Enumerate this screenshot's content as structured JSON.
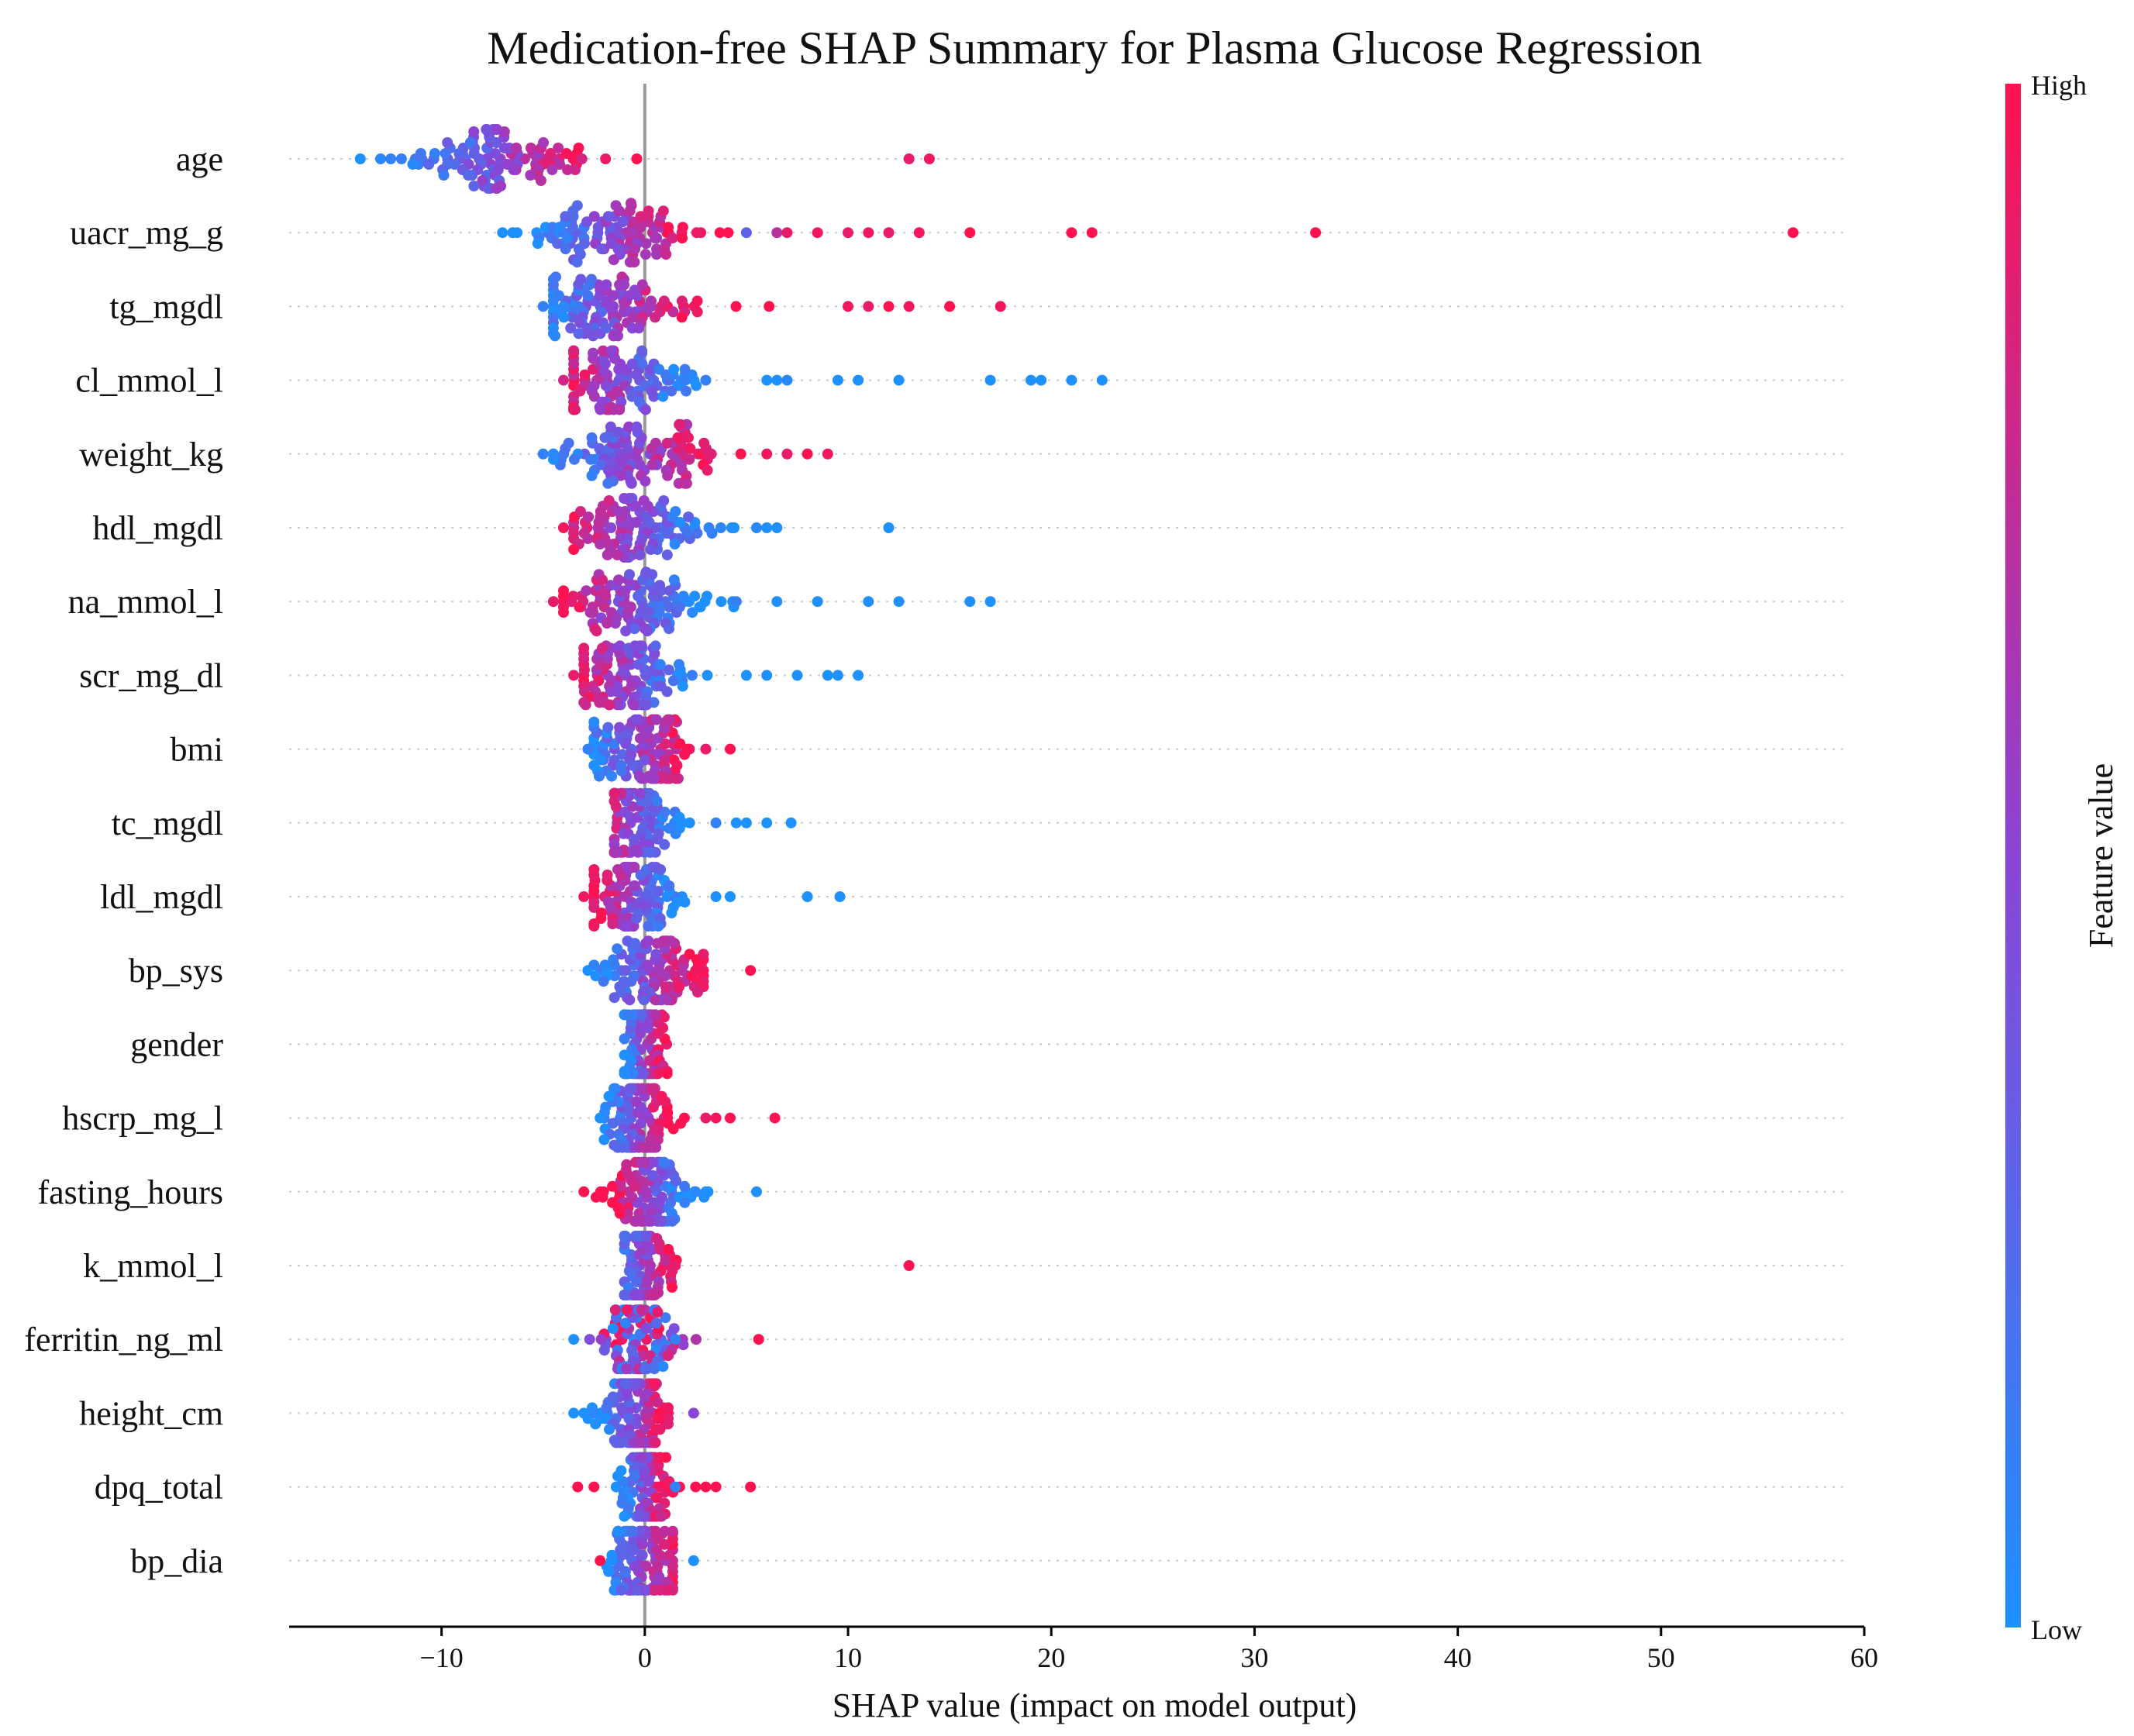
{
  "chart_data": {
    "type": "scatter",
    "subtype": "shap-beeswarm",
    "title": "Medication-free SHAP Summary for Plasma Glucose Regression",
    "xlabel": "SHAP value (impact on model output)",
    "xlim": [
      -17.5,
      60
    ],
    "xticks": [
      -10,
      0,
      10,
      20,
      30,
      40,
      50,
      60
    ],
    "xtick_labels": [
      "−10",
      "0",
      "10",
      "20",
      "30",
      "40",
      "50",
      "60"
    ],
    "zero_line": true,
    "grid": false,
    "colorbar": {
      "title": "Feature value",
      "high_label": "High",
      "low_label": "Low",
      "low_color": "#1e90ff",
      "mid_color": "#8b44d6",
      "high_color": "#ff1250"
    },
    "features": [
      {
        "name": "age",
        "x_range": [
          -14,
          14
        ],
        "center": -7,
        "spread": 2.5,
        "color_trend": 1,
        "outliers": [
          [
            -14,
            0
          ],
          [
            -13,
            0.05
          ],
          [
            -12.5,
            0.1
          ],
          [
            13,
            0.9
          ],
          [
            14,
            0.95
          ]
        ]
      },
      {
        "name": "uacr_mg_g",
        "x_range": [
          -7,
          57
        ],
        "center": -1.5,
        "spread": 2.2,
        "color_trend": 1,
        "outliers": [
          [
            -7,
            0
          ],
          [
            5,
            0.3
          ],
          [
            6.5,
            0.7
          ],
          [
            7,
            0.9
          ],
          [
            8.5,
            0.95
          ],
          [
            10,
            0.9
          ],
          [
            11,
            0.95
          ],
          [
            12,
            0.9
          ],
          [
            13.5,
            0.95
          ],
          [
            16,
            1
          ],
          [
            21,
            1
          ],
          [
            22,
            1
          ],
          [
            33,
            1
          ],
          [
            56.5,
            1
          ]
        ]
      },
      {
        "name": "tg_mgdl",
        "x_range": [
          -5,
          17.5
        ],
        "center": -1.5,
        "spread": 2.0,
        "color_trend": 1,
        "outliers": [
          [
            -5,
            0.1
          ],
          [
            -4,
            0.05
          ],
          [
            10,
            0.95
          ],
          [
            11,
            0.9
          ],
          [
            12,
            1
          ],
          [
            13,
            0.95
          ],
          [
            15,
            1
          ],
          [
            17.5,
            0.95
          ]
        ]
      },
      {
        "name": "cl_mmol_l",
        "x_range": [
          -4,
          22.5
        ],
        "center": -1.2,
        "spread": 1.8,
        "color_trend": -1,
        "outliers": [
          [
            -4,
            0.8
          ],
          [
            2,
            0.1
          ],
          [
            3,
            0.1
          ],
          [
            6,
            0
          ],
          [
            6.5,
            0
          ],
          [
            7,
            0.05
          ],
          [
            9.5,
            0
          ],
          [
            10.5,
            0
          ],
          [
            12.5,
            0
          ],
          [
            17,
            0
          ],
          [
            19,
            0
          ],
          [
            19.5,
            0
          ],
          [
            21,
            0
          ],
          [
            22.5,
            0
          ]
        ]
      },
      {
        "name": "weight_kg",
        "x_range": [
          -5,
          9
        ],
        "center": -0.5,
        "spread": 2.2,
        "color_trend": 1,
        "outliers": [
          [
            -5,
            0.1
          ],
          [
            -4.5,
            0.05
          ],
          [
            6,
            0.95
          ],
          [
            7,
            0.9
          ],
          [
            8,
            1
          ],
          [
            9,
            0.95
          ]
        ]
      },
      {
        "name": "hdl_mgdl",
        "x_range": [
          -4,
          12
        ],
        "center": -0.5,
        "spread": 2.0,
        "color_trend": -1,
        "outliers": [
          [
            -4,
            0.95
          ],
          [
            5.5,
            0.05
          ],
          [
            6,
            0
          ],
          [
            6.5,
            0
          ],
          [
            12,
            0
          ]
        ]
      },
      {
        "name": "na_mmol_l",
        "x_range": [
          -4.5,
          17
        ],
        "center": -1,
        "spread": 2.0,
        "color_trend": -1,
        "outliers": [
          [
            -4.5,
            0.9
          ],
          [
            4.5,
            0.1
          ],
          [
            6.5,
            0
          ],
          [
            8.5,
            0
          ],
          [
            11,
            0
          ],
          [
            12.5,
            0
          ],
          [
            16,
            0
          ],
          [
            17,
            0
          ]
        ]
      },
      {
        "name": "scr_mg_dl",
        "x_range": [
          -3.5,
          10.5
        ],
        "center": -0.8,
        "spread": 1.6,
        "color_trend": -1,
        "outliers": [
          [
            -3.5,
            0.9
          ],
          [
            5,
            0
          ],
          [
            6,
            0
          ],
          [
            7.5,
            0
          ],
          [
            9,
            0
          ],
          [
            9.5,
            0
          ],
          [
            10.5,
            0
          ]
        ]
      },
      {
        "name": "bmi",
        "x_range": [
          -3,
          4.5
        ],
        "center": -0.3,
        "spread": 1.4,
        "color_trend": 1,
        "outliers": [
          [
            -2.8,
            0.1
          ],
          [
            3,
            0.9
          ],
          [
            4.2,
            1
          ]
        ]
      },
      {
        "name": "tc_mgdl",
        "x_range": [
          -2,
          7.5
        ],
        "center": -0.6,
        "spread": 1.2,
        "color_trend": -1,
        "outliers": [
          [
            3.5,
            0.1
          ],
          [
            4.5,
            0
          ],
          [
            5,
            0
          ],
          [
            6,
            0
          ],
          [
            7.2,
            0
          ]
        ]
      },
      {
        "name": "ldl_mgdl",
        "x_range": [
          -3,
          10
        ],
        "center": -0.6,
        "spread": 1.2,
        "color_trend": -1,
        "outliers": [
          [
            -3,
            0.95
          ],
          [
            3.5,
            0
          ],
          [
            4.2,
            0
          ],
          [
            8,
            0
          ],
          [
            9.6,
            0
          ]
        ]
      },
      {
        "name": "bp_sys",
        "x_range": [
          -3,
          5
        ],
        "center": 0.3,
        "spread": 1.4,
        "color_trend": 1,
        "outliers": [
          [
            -2.8,
            0
          ],
          [
            2.5,
            0.95
          ],
          [
            5.2,
            1
          ]
        ]
      },
      {
        "name": "gender",
        "x_range": [
          -1.5,
          2
        ],
        "center": 0,
        "spread": 0.6,
        "color_trend": 1,
        "outliers": []
      },
      {
        "name": "hscrp_mg_l",
        "x_range": [
          -2.5,
          6.5
        ],
        "center": -0.4,
        "spread": 0.9,
        "color_trend": 1,
        "outliers": [
          [
            -2.2,
            0
          ],
          [
            3,
            0.9
          ],
          [
            3.5,
            0.95
          ],
          [
            4.2,
            1
          ],
          [
            6.4,
            1
          ]
        ]
      },
      {
        "name": "fasting_hours",
        "x_range": [
          -3,
          5.5
        ],
        "center": 0.2,
        "spread": 1.0,
        "color_trend": -1,
        "outliers": [
          [
            -3,
            1
          ],
          [
            2.5,
            0.05
          ],
          [
            3,
            0
          ],
          [
            5.5,
            0
          ]
        ]
      },
      {
        "name": "k_mmol_l",
        "x_range": [
          -1.5,
          13
        ],
        "center": 0,
        "spread": 0.8,
        "color_trend": 1,
        "outliers": [
          [
            1.5,
            0.9
          ],
          [
            13,
            1
          ]
        ]
      },
      {
        "name": "ferritin_ng_ml",
        "x_range": [
          -3.5,
          5.5
        ],
        "center": -0.2,
        "spread": 0.8,
        "color_trend": 0,
        "outliers": [
          [
            -3.5,
            0
          ],
          [
            1.5,
            0.1
          ],
          [
            5.6,
            1
          ]
        ]
      },
      {
        "name": "height_cm",
        "x_range": [
          -3.5,
          2.5
        ],
        "center": -0.5,
        "spread": 0.9,
        "color_trend": 1,
        "outliers": [
          [
            -3.5,
            0
          ],
          [
            -2.5,
            0.05
          ],
          [
            2.4,
            0.5
          ]
        ]
      },
      {
        "name": "dpq_total",
        "x_range": [
          -3.5,
          5
        ],
        "center": 0,
        "spread": 0.6,
        "color_trend": 1,
        "outliers": [
          [
            -3.3,
            1
          ],
          [
            -2.5,
            1
          ],
          [
            1.5,
            0.1
          ],
          [
            2.5,
            1
          ],
          [
            3,
            1
          ],
          [
            3.5,
            1
          ],
          [
            5.2,
            1
          ]
        ]
      },
      {
        "name": "bp_dia",
        "x_range": [
          -2.5,
          2.5
        ],
        "center": 0,
        "spread": 1.0,
        "color_trend": 1,
        "outliers": [
          [
            -2.2,
            1
          ],
          [
            2.4,
            0
          ]
        ]
      }
    ]
  }
}
